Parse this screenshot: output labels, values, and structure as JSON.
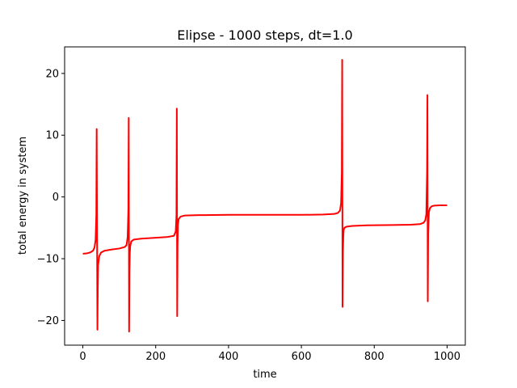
{
  "chart_data": {
    "type": "line",
    "title": "Elipse - 1000 steps, dt=1.0",
    "xlabel": "time",
    "ylabel": "total energy in system",
    "xlim": [
      -50,
      1050
    ],
    "ylim": [
      -24,
      24.3
    ],
    "xticks": [
      0,
      200,
      400,
      600,
      800,
      1000
    ],
    "yticks": [
      -20,
      -10,
      0,
      10,
      20
    ],
    "xtick_labels": [
      "0",
      "200",
      "400",
      "600",
      "800",
      "1000"
    ],
    "ytick_labels": [
      "−20",
      "−10",
      "0",
      "10",
      "20"
    ],
    "grid": false,
    "series": [
      {
        "color": "#ff0000",
        "x": [
          0,
          10,
          20,
          28,
          32,
          35,
          37,
          38,
          39,
          40,
          41,
          42,
          45,
          50,
          60,
          80,
          100,
          115,
          120,
          123,
          125,
          126,
          127,
          128,
          129,
          130,
          133,
          140,
          160,
          200,
          230,
          250,
          255,
          257,
          258,
          259,
          260,
          261,
          263,
          268,
          280,
          320,
          400,
          500,
          600,
          660,
          690,
          700,
          706,
          709,
          711,
          712,
          713,
          714,
          715,
          716,
          718,
          724,
          740,
          780,
          850,
          900,
          925,
          935,
          940,
          943,
          945,
          946,
          947,
          948,
          950,
          953,
          958,
          965,
          980,
          1000
        ],
        "y": [
          -9.2,
          -9.15,
          -9.0,
          -8.7,
          -8.2,
          -7.0,
          -3.0,
          11.0,
          -5.0,
          -21.5,
          -15.0,
          -11.0,
          -9.6,
          -9.0,
          -8.7,
          -8.5,
          -8.35,
          -8.1,
          -7.8,
          -6.5,
          -2.0,
          12.8,
          -21.8,
          -12.0,
          -9.0,
          -8.0,
          -7.2,
          -6.9,
          -6.75,
          -6.6,
          -6.5,
          -6.3,
          -5.6,
          -3.0,
          14.3,
          -19.3,
          -8.0,
          -4.6,
          -3.6,
          -3.2,
          -3.0,
          -2.95,
          -2.9,
          -2.9,
          -2.9,
          -2.85,
          -2.75,
          -2.6,
          -2.2,
          -1.0,
          4.0,
          22.2,
          -17.8,
          -9.0,
          -6.5,
          -5.4,
          -5.0,
          -4.8,
          -4.7,
          -4.6,
          -4.55,
          -4.5,
          -4.4,
          -4.2,
          -3.8,
          -2.8,
          4.0,
          16.5,
          -16.9,
          -6.0,
          -2.5,
          -1.8,
          -1.5,
          -1.4,
          -1.35,
          -1.35
        ]
      }
    ]
  }
}
